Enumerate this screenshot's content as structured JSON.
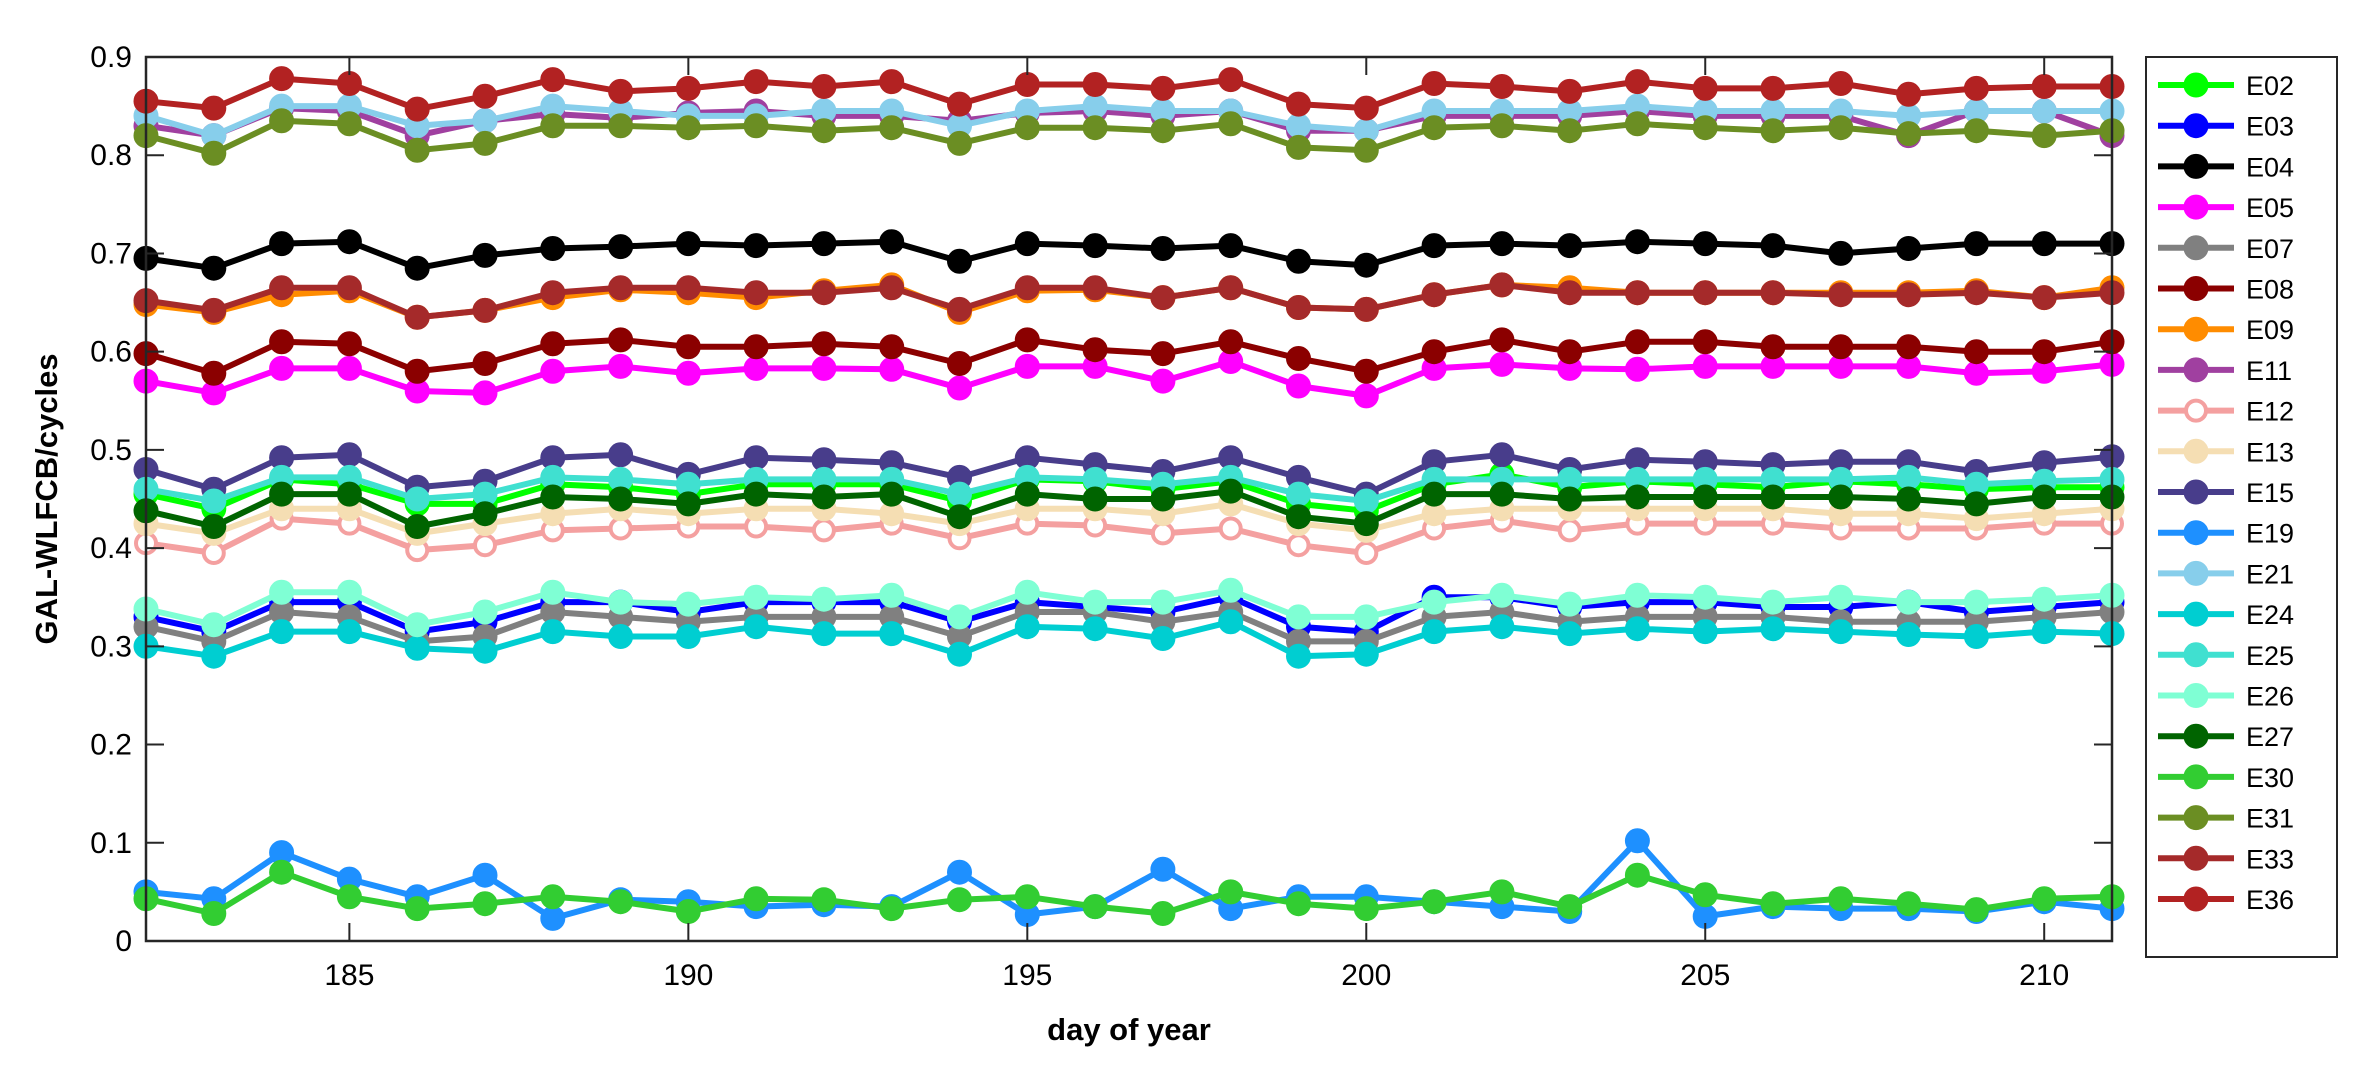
{
  "chart_data": {
    "type": "line",
    "title": "",
    "xlabel": "day of year",
    "ylabel": "GAL-WLFCB/cycles",
    "xlim": [
      182,
      211
    ],
    "ylim": [
      0,
      0.9
    ],
    "xticks": [
      185,
      190,
      195,
      200,
      205,
      210
    ],
    "xtick_labels": [
      "185",
      "190",
      "195",
      "200",
      "205",
      "210"
    ],
    "yticks": [
      0,
      0.1,
      0.2,
      0.3,
      0.4,
      0.5,
      0.6,
      0.7,
      0.8,
      0.9
    ],
    "ytick_labels": [
      "0",
      "0.1",
      "0.2",
      "0.3",
      "0.4",
      "0.5",
      "0.6",
      "0.7",
      "0.8",
      "0.9"
    ],
    "grid": false,
    "legend_position": "outside-right",
    "x": [
      182,
      183,
      184,
      185,
      186,
      187,
      188,
      189,
      190,
      191,
      192,
      193,
      194,
      195,
      196,
      197,
      198,
      199,
      200,
      201,
      202,
      203,
      204,
      205,
      206,
      207,
      208,
      209,
      210,
      211
    ],
    "series": [
      {
        "name": "E02",
        "color": "#00ff00",
        "hollow": false,
        "values": [
          0.455,
          0.44,
          0.47,
          0.465,
          0.445,
          0.445,
          0.465,
          0.462,
          0.455,
          0.465,
          0.465,
          0.465,
          0.448,
          0.47,
          0.468,
          0.46,
          0.468,
          0.445,
          0.438,
          0.465,
          0.475,
          0.462,
          0.468,
          0.465,
          0.462,
          0.468,
          0.465,
          0.46,
          0.462,
          0.462
        ]
      },
      {
        "name": "E03",
        "color": "#0000ff",
        "hollow": false,
        "values": [
          0.33,
          0.315,
          0.345,
          0.345,
          0.315,
          0.325,
          0.345,
          0.345,
          0.335,
          0.345,
          0.345,
          0.345,
          0.325,
          0.345,
          0.34,
          0.335,
          0.35,
          0.32,
          0.315,
          0.35,
          0.35,
          0.34,
          0.345,
          0.345,
          0.34,
          0.34,
          0.345,
          0.335,
          0.34,
          0.345
        ]
      },
      {
        "name": "E04",
        "color": "#000000",
        "hollow": false,
        "values": [
          0.695,
          0.685,
          0.71,
          0.712,
          0.685,
          0.698,
          0.705,
          0.707,
          0.71,
          0.708,
          0.71,
          0.712,
          0.692,
          0.71,
          0.708,
          0.705,
          0.708,
          0.692,
          0.688,
          0.708,
          0.71,
          0.708,
          0.712,
          0.71,
          0.708,
          0.7,
          0.705,
          0.71,
          0.71,
          0.71
        ]
      },
      {
        "name": "E05",
        "color": "#ff00ff",
        "hollow": false,
        "values": [
          0.57,
          0.558,
          0.583,
          0.583,
          0.56,
          0.558,
          0.58,
          0.585,
          0.578,
          0.583,
          0.583,
          0.582,
          0.563,
          0.585,
          0.585,
          0.57,
          0.59,
          0.565,
          0.555,
          0.583,
          0.587,
          0.583,
          0.582,
          0.585,
          0.585,
          0.585,
          0.585,
          0.578,
          0.58,
          0.587
        ]
      },
      {
        "name": "E07",
        "color": "#808080",
        "hollow": false,
        "values": [
          0.32,
          0.305,
          0.335,
          0.33,
          0.305,
          0.31,
          0.335,
          0.33,
          0.325,
          0.33,
          0.33,
          0.33,
          0.31,
          0.335,
          0.335,
          0.325,
          0.335,
          0.305,
          0.305,
          0.33,
          0.335,
          0.325,
          0.33,
          0.33,
          0.33,
          0.325,
          0.325,
          0.325,
          0.33,
          0.335
        ]
      },
      {
        "name": "E08",
        "color": "#8b0000",
        "hollow": false,
        "values": [
          0.598,
          0.578,
          0.61,
          0.608,
          0.58,
          0.588,
          0.608,
          0.612,
          0.605,
          0.605,
          0.608,
          0.605,
          0.588,
          0.612,
          0.602,
          0.598,
          0.61,
          0.593,
          0.58,
          0.6,
          0.612,
          0.6,
          0.61,
          0.61,
          0.605,
          0.605,
          0.605,
          0.6,
          0.6,
          0.61
        ]
      },
      {
        "name": "E09",
        "color": "#ff8c00",
        "hollow": false,
        "values": [
          0.648,
          0.64,
          0.658,
          0.662,
          0.635,
          0.642,
          0.655,
          0.663,
          0.66,
          0.655,
          0.662,
          0.668,
          0.64,
          0.662,
          0.663,
          0.655,
          0.665,
          0.645,
          0.643,
          0.658,
          0.668,
          0.665,
          0.66,
          0.66,
          0.66,
          0.66,
          0.66,
          0.662,
          0.655,
          0.665
        ]
      },
      {
        "name": "E11",
        "color": "#a040a0",
        "hollow": false,
        "values": [
          0.83,
          0.82,
          0.848,
          0.845,
          0.82,
          0.835,
          0.842,
          0.838,
          0.843,
          0.845,
          0.84,
          0.84,
          0.835,
          0.843,
          0.845,
          0.84,
          0.845,
          0.825,
          0.825,
          0.84,
          0.84,
          0.84,
          0.845,
          0.84,
          0.84,
          0.84,
          0.82,
          0.845,
          0.845,
          0.82
        ]
      },
      {
        "name": "E12",
        "color": "#f4a0a0",
        "hollow": true,
        "values": [
          0.405,
          0.395,
          0.43,
          0.425,
          0.398,
          0.403,
          0.418,
          0.42,
          0.422,
          0.422,
          0.418,
          0.425,
          0.41,
          0.425,
          0.423,
          0.415,
          0.42,
          0.403,
          0.395,
          0.42,
          0.428,
          0.418,
          0.425,
          0.425,
          0.425,
          0.42,
          0.42,
          0.42,
          0.425,
          0.425
        ]
      },
      {
        "name": "E13",
        "color": "#f5deb3",
        "hollow": false,
        "values": [
          0.425,
          0.415,
          0.44,
          0.44,
          0.415,
          0.425,
          0.435,
          0.44,
          0.435,
          0.44,
          0.44,
          0.435,
          0.425,
          0.44,
          0.44,
          0.435,
          0.445,
          0.425,
          0.418,
          0.435,
          0.44,
          0.44,
          0.44,
          0.44,
          0.44,
          0.435,
          0.435,
          0.43,
          0.435,
          0.44
        ]
      },
      {
        "name": "E15",
        "color": "#483d8b",
        "hollow": false,
        "values": [
          0.48,
          0.46,
          0.492,
          0.495,
          0.462,
          0.468,
          0.492,
          0.495,
          0.475,
          0.492,
          0.49,
          0.487,
          0.472,
          0.492,
          0.485,
          0.478,
          0.492,
          0.472,
          0.455,
          0.488,
          0.495,
          0.48,
          0.49,
          0.488,
          0.485,
          0.488,
          0.488,
          0.478,
          0.487,
          0.493
        ]
      },
      {
        "name": "E19",
        "color": "#1e90ff",
        "hollow": false,
        "values": [
          0.05,
          0.043,
          0.09,
          0.063,
          0.045,
          0.067,
          0.023,
          0.042,
          0.04,
          0.035,
          0.037,
          0.035,
          0.07,
          0.027,
          0.035,
          0.073,
          0.033,
          0.045,
          0.045,
          0.04,
          0.035,
          0.03,
          0.102,
          0.025,
          0.035,
          0.033,
          0.033,
          0.03,
          0.04,
          0.033
        ]
      },
      {
        "name": "E21",
        "color": "#87ceeb",
        "hollow": false,
        "values": [
          0.84,
          0.82,
          0.85,
          0.85,
          0.83,
          0.835,
          0.85,
          0.845,
          0.84,
          0.84,
          0.845,
          0.845,
          0.83,
          0.845,
          0.85,
          0.845,
          0.845,
          0.83,
          0.825,
          0.845,
          0.845,
          0.845,
          0.85,
          0.845,
          0.845,
          0.845,
          0.84,
          0.845,
          0.845,
          0.845
        ]
      },
      {
        "name": "E24",
        "color": "#00ced1",
        "hollow": false,
        "values": [
          0.3,
          0.29,
          0.315,
          0.315,
          0.298,
          0.295,
          0.315,
          0.31,
          0.31,
          0.32,
          0.313,
          0.313,
          0.292,
          0.32,
          0.318,
          0.308,
          0.325,
          0.29,
          0.292,
          0.315,
          0.32,
          0.313,
          0.318,
          0.315,
          0.318,
          0.315,
          0.312,
          0.31,
          0.315,
          0.313
        ]
      },
      {
        "name": "E25",
        "color": "#40e0d0",
        "hollow": false,
        "values": [
          0.46,
          0.448,
          0.472,
          0.472,
          0.45,
          0.455,
          0.472,
          0.47,
          0.465,
          0.47,
          0.47,
          0.47,
          0.455,
          0.472,
          0.47,
          0.465,
          0.472,
          0.455,
          0.448,
          0.47,
          0.47,
          0.47,
          0.47,
          0.47,
          0.47,
          0.47,
          0.472,
          0.465,
          0.468,
          0.47
        ]
      },
      {
        "name": "E26",
        "color": "#7fffd4",
        "hollow": false,
        "values": [
          0.338,
          0.322,
          0.355,
          0.355,
          0.322,
          0.335,
          0.355,
          0.345,
          0.343,
          0.35,
          0.348,
          0.352,
          0.33,
          0.355,
          0.345,
          0.345,
          0.357,
          0.33,
          0.33,
          0.345,
          0.352,
          0.343,
          0.352,
          0.35,
          0.345,
          0.35,
          0.345,
          0.345,
          0.348,
          0.352
        ]
      },
      {
        "name": "E27",
        "color": "#006400",
        "hollow": false,
        "values": [
          0.438,
          0.422,
          0.455,
          0.455,
          0.422,
          0.435,
          0.452,
          0.45,
          0.445,
          0.455,
          0.452,
          0.455,
          0.432,
          0.455,
          0.45,
          0.45,
          0.458,
          0.432,
          0.425,
          0.455,
          0.455,
          0.45,
          0.452,
          0.452,
          0.452,
          0.452,
          0.45,
          0.445,
          0.452,
          0.452
        ]
      },
      {
        "name": "E30",
        "color": "#32cd32",
        "hollow": false,
        "values": [
          0.043,
          0.028,
          0.07,
          0.045,
          0.033,
          0.038,
          0.045,
          0.04,
          0.03,
          0.043,
          0.042,
          0.033,
          0.042,
          0.045,
          0.035,
          0.028,
          0.05,
          0.038,
          0.033,
          0.04,
          0.05,
          0.035,
          0.067,
          0.047,
          0.038,
          0.043,
          0.038,
          0.032,
          0.043,
          0.045
        ]
      },
      {
        "name": "E31",
        "color": "#6b8e23",
        "hollow": false,
        "values": [
          0.82,
          0.802,
          0.835,
          0.832,
          0.805,
          0.812,
          0.83,
          0.83,
          0.828,
          0.83,
          0.825,
          0.828,
          0.812,
          0.828,
          0.828,
          0.825,
          0.832,
          0.808,
          0.805,
          0.828,
          0.83,
          0.825,
          0.832,
          0.828,
          0.825,
          0.828,
          0.822,
          0.825,
          0.82,
          0.825
        ]
      },
      {
        "name": "E33",
        "color": "#a52a2a",
        "hollow": false,
        "values": [
          0.652,
          0.642,
          0.665,
          0.665,
          0.635,
          0.642,
          0.66,
          0.665,
          0.665,
          0.66,
          0.66,
          0.665,
          0.643,
          0.665,
          0.665,
          0.655,
          0.665,
          0.645,
          0.643,
          0.658,
          0.668,
          0.66,
          0.66,
          0.66,
          0.66,
          0.658,
          0.658,
          0.66,
          0.655,
          0.66
        ]
      },
      {
        "name": "E36",
        "color": "#b22222",
        "hollow": false,
        "values": [
          0.855,
          0.848,
          0.878,
          0.873,
          0.847,
          0.86,
          0.877,
          0.865,
          0.868,
          0.875,
          0.87,
          0.875,
          0.852,
          0.872,
          0.872,
          0.868,
          0.877,
          0.852,
          0.848,
          0.873,
          0.87,
          0.865,
          0.875,
          0.868,
          0.868,
          0.873,
          0.862,
          0.868,
          0.87,
          0.87
        ]
      }
    ]
  }
}
